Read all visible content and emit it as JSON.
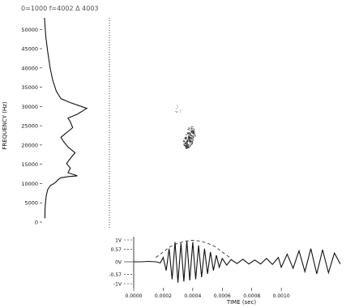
{
  "chart_data": [
    {
      "type": "line",
      "title": "0=1000 f=4002 Δ 4003",
      "orientation": "vertical",
      "ylabel": "FREQUENCY (Hz)",
      "ylim": [
        0,
        53000
      ],
      "y_ticks": [
        0,
        5000,
        10000,
        15000,
        20000,
        25000,
        30000,
        35000,
        40000,
        45000,
        50000
      ],
      "y_tick_labels": [
        "0",
        "5000",
        "10000",
        "15000",
        "20000",
        "25000",
        "30000",
        "35000",
        "40000",
        "45000",
        "50000"
      ],
      "xlim": [
        0,
        1
      ],
      "series": [
        {
          "x": [
            0.06,
            0.06,
            0.07,
            0.09,
            0.12,
            0.18,
            0.25,
            0.3,
            0.34,
            0.4,
            0.55,
            0.75,
            0.55,
            0.6,
            0.52,
            0.6,
            0.7,
            0.55,
            0.45,
            0.4,
            0.5,
            0.65,
            0.6,
            0.55,
            0.75,
            0.95,
            0.6,
            0.4,
            0.3,
            0.22,
            0.17,
            0.12,
            0.08,
            0.06,
            0.05
          ],
          "y": [
            1000,
            3000,
            5000,
            7000,
            8500,
            9500,
            10000,
            10500,
            11000,
            11500,
            11800,
            12000,
            12800,
            14000,
            15200,
            16500,
            18000,
            19500,
            21000,
            22000,
            23000,
            24500,
            26000,
            27000,
            28000,
            29500,
            31000,
            32000,
            34000,
            37000,
            40000,
            44000,
            48000,
            51000,
            53000
          ]
        }
      ]
    },
    {
      "type": "scatter",
      "title": "",
      "xlim": [
        0,
        0.0014
      ],
      "ylim": [
        0,
        53000
      ],
      "clusters": [
        {
          "label": "",
          "center_x": 0.000375,
          "center_y": 22000,
          "color": "#222222"
        }
      ],
      "divider_style": "dotted"
    },
    {
      "type": "line",
      "xlabel": "TIME (sec)",
      "xlim": [
        0,
        0.0014
      ],
      "x_ticks": [
        0,
        0.0002,
        0.0004,
        0.0006,
        0.0008,
        0.001
      ],
      "x_tick_labels": [
        "0.0000",
        "0.0002",
        "0.0004",
        "0.0006",
        "0.0008",
        "0.0010"
      ],
      "ylim": [
        -1,
        1
      ],
      "y_ticks": [
        1,
        0.57,
        0,
        -0.57,
        -1
      ],
      "y_tick_labels": [
        "1V",
        "0.57",
        "0V",
        "-0.57",
        "-1V"
      ],
      "series": [
        {
          "name": "",
          "kind": "waveform",
          "x": [
            0.0,
            5e-05,
            0.0001,
            0.00015,
            0.00018,
            0.0002,
            0.00022,
            0.00024,
            0.00026,
            0.00028,
            0.0003,
            0.00032,
            0.00034,
            0.00036,
            0.00038,
            0.0004,
            0.00042,
            0.00044,
            0.00046,
            0.00048,
            0.0005,
            0.00052,
            0.00054,
            0.00056,
            0.00058,
            0.0006,
            0.00063,
            0.00066,
            0.0007,
            0.00074,
            0.00078,
            0.00082,
            0.00086,
            0.0009,
            0.00094,
            0.00098,
            0.001,
            0.00104,
            0.00108,
            0.00112,
            0.00116,
            0.0012,
            0.00124,
            0.00128,
            0.00132,
            0.00136,
            0.0014
          ],
          "y": [
            0.0,
            0.0,
            0.02,
            0.0,
            -0.05,
            0.2,
            -0.4,
            0.6,
            -0.8,
            0.9,
            -0.95,
            0.85,
            -0.9,
            0.95,
            -0.85,
            0.9,
            -0.8,
            0.75,
            -0.7,
            0.6,
            -0.55,
            0.45,
            -0.4,
            0.3,
            -0.25,
            0.15,
            -0.15,
            0.1,
            -0.08,
            0.12,
            -0.1,
            0.08,
            -0.1,
            0.15,
            -0.12,
            0.2,
            -0.25,
            0.35,
            -0.3,
            0.5,
            -0.45,
            0.6,
            -0.55,
            0.55,
            -0.5,
            0.4,
            -0.1
          ]
        },
        {
          "name": "",
          "kind": "envelope",
          "x": [
            0.00015,
            0.0002,
            0.00025,
            0.0003,
            0.00035,
            0.0004,
            0.00045,
            0.0005,
            0.00055,
            0.0006,
            0.00065
          ],
          "y": [
            0.2,
            0.45,
            0.7,
            0.85,
            0.95,
            0.98,
            0.95,
            0.85,
            0.7,
            0.45,
            0.2
          ],
          "style": "dashed"
        }
      ]
    }
  ]
}
